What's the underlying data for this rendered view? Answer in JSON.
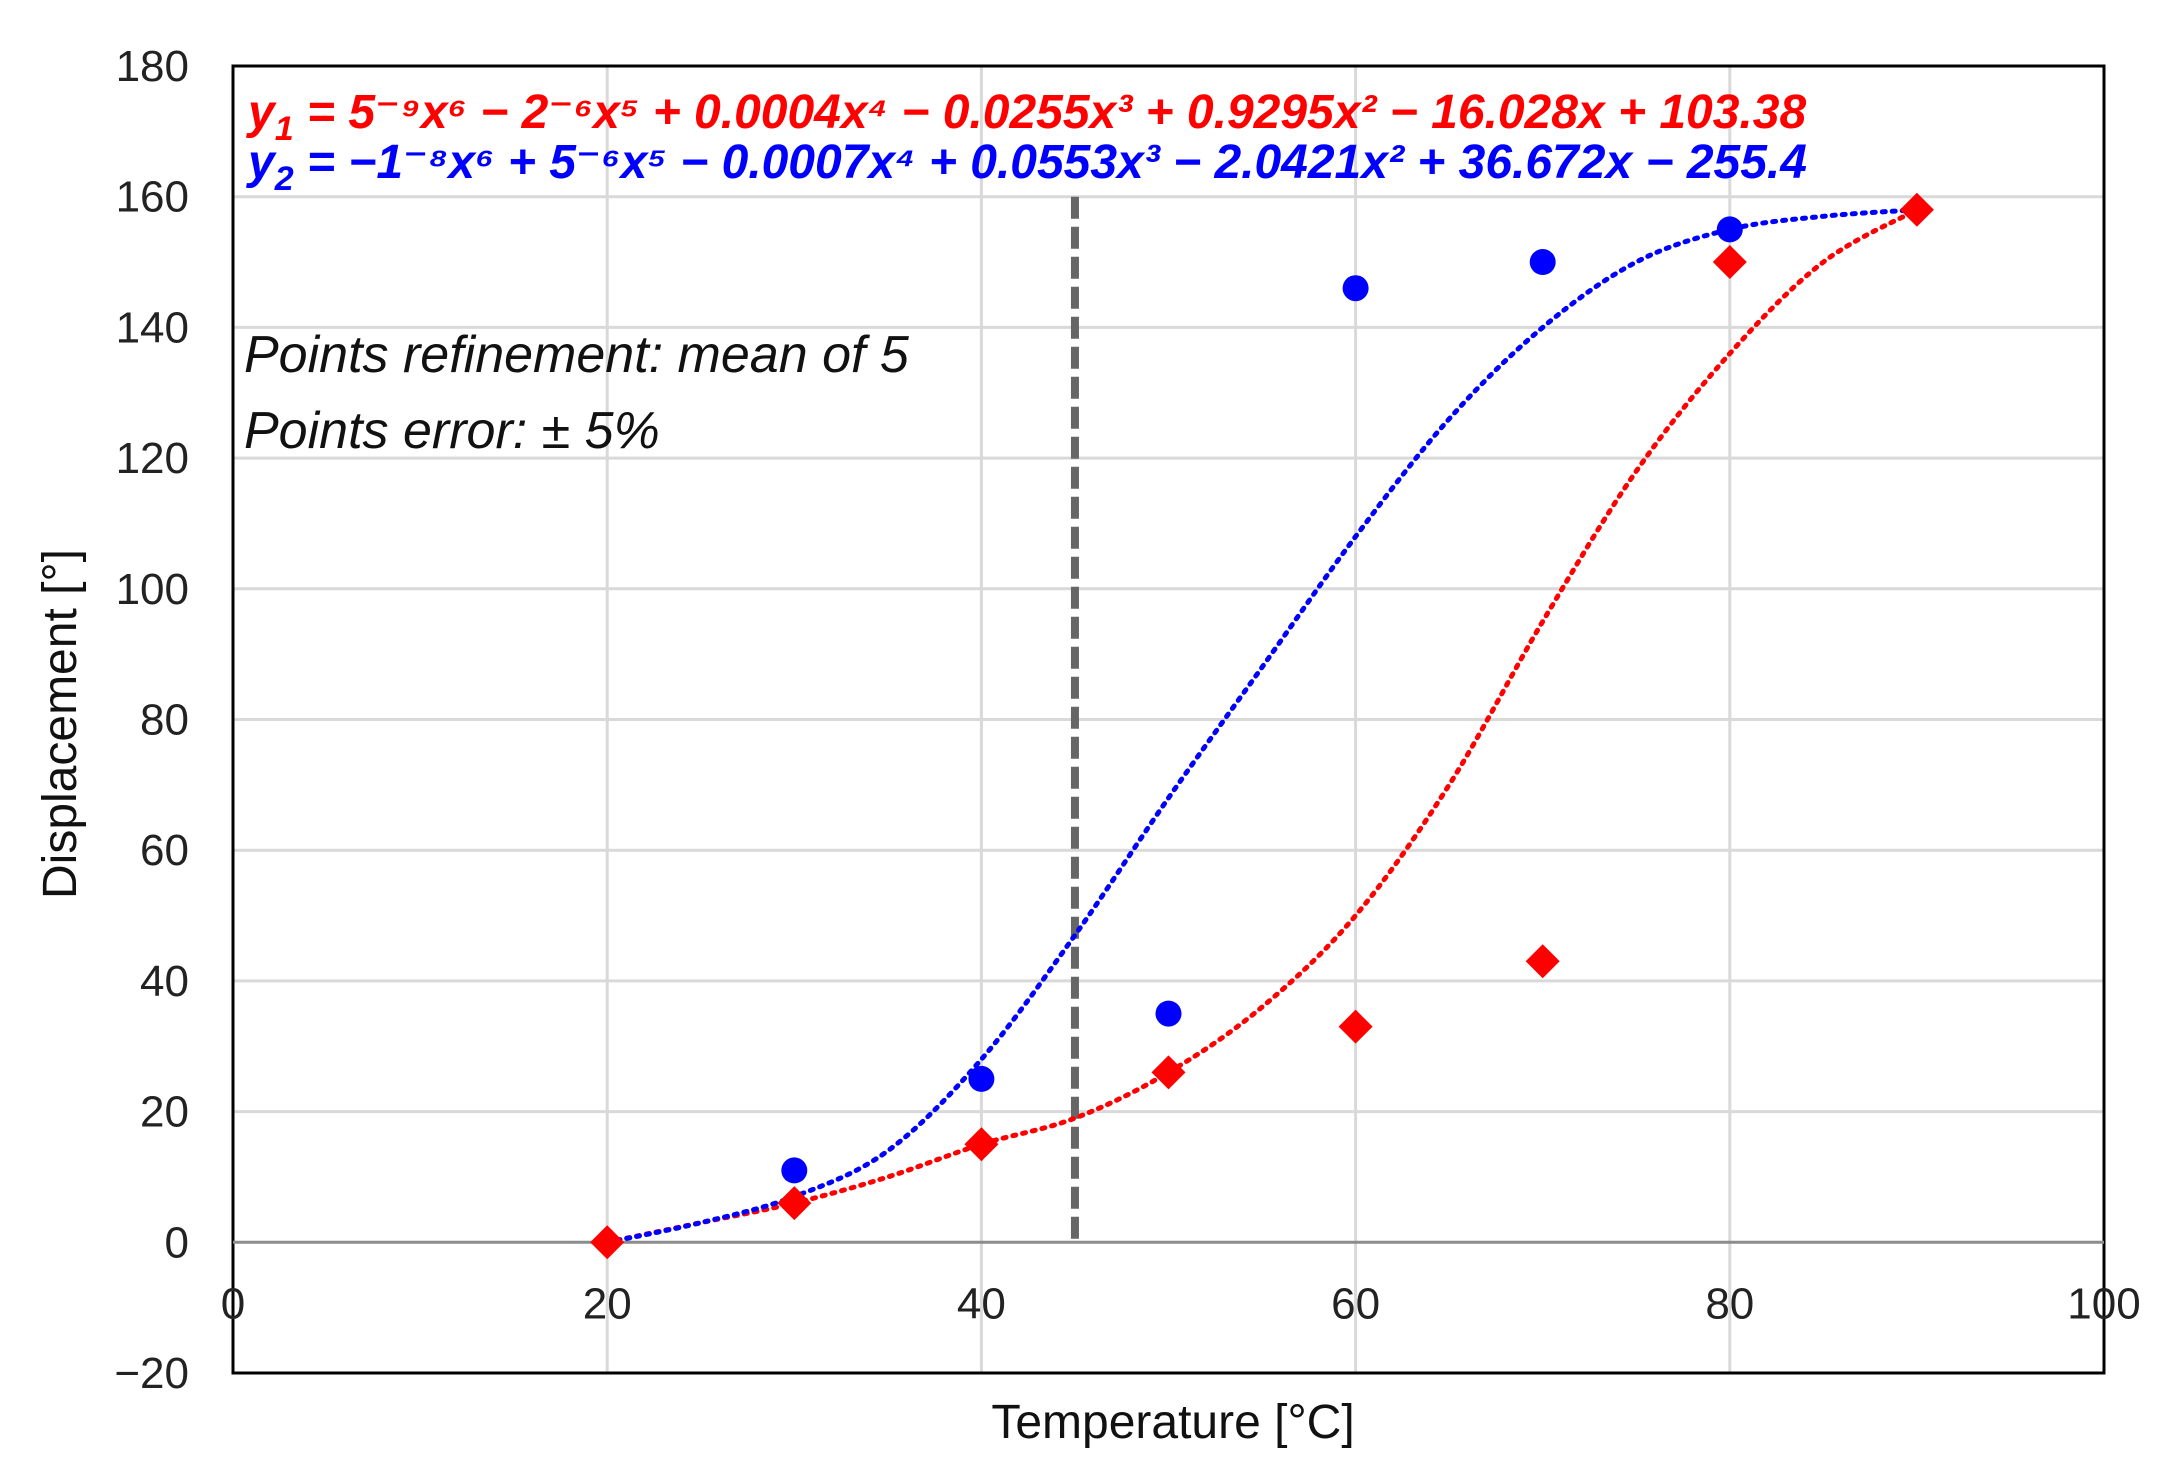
{
  "chart_data": {
    "type": "scatter",
    "title": "",
    "xlabel": "Temperature [°C]",
    "ylabel": "Displacement [°]",
    "xlim": [
      0,
      100
    ],
    "ylim": [
      -20,
      180
    ],
    "x_ticks": [
      0,
      20,
      40,
      60,
      80,
      100
    ],
    "y_ticks": [
      -20,
      0,
      20,
      40,
      60,
      80,
      100,
      120,
      140,
      160,
      180
    ],
    "x_tick_labels": [
      "0",
      "20",
      "40",
      "60",
      "80",
      "100"
    ],
    "y_tick_labels": [
      "−20",
      "0",
      "20",
      "40",
      "60",
      "80",
      "100",
      "120",
      "140",
      "160",
      "180"
    ],
    "grid": true,
    "series": [
      {
        "name": "y1",
        "marker": "diamond",
        "color": "#ff0000",
        "x": [
          20,
          30,
          40,
          50,
          60,
          70,
          80,
          90
        ],
        "y": [
          0,
          6,
          15,
          26,
          33,
          43,
          150,
          158
        ],
        "trendline": {
          "type": "polynomial",
          "order": 6,
          "style": "dotted",
          "fitted": [
            [
              20,
              0
            ],
            [
              25,
              3
            ],
            [
              30,
              6
            ],
            [
              35,
              10
            ],
            [
              40,
              15
            ],
            [
              45,
              19
            ],
            [
              50,
              26
            ],
            [
              55,
              36
            ],
            [
              60,
              50
            ],
            [
              65,
              70
            ],
            [
              70,
              95
            ],
            [
              75,
              118
            ],
            [
              80,
              136
            ],
            [
              85,
              150
            ],
            [
              90,
              158
            ]
          ]
        }
      },
      {
        "name": "y2",
        "marker": "circle",
        "color": "#0000ff",
        "x": [
          30,
          40,
          50,
          60,
          70,
          80
        ],
        "y": [
          11,
          25,
          35,
          146,
          150,
          155
        ],
        "trendline": {
          "type": "polynomial",
          "order": 6,
          "style": "dotted",
          "fitted": [
            [
              20,
              0
            ],
            [
              25,
              3
            ],
            [
              30,
              7
            ],
            [
              35,
              14
            ],
            [
              40,
              28
            ],
            [
              45,
              47
            ],
            [
              50,
              68
            ],
            [
              55,
              88
            ],
            [
              60,
              108
            ],
            [
              65,
              126
            ],
            [
              70,
              140
            ],
            [
              75,
              150
            ],
            [
              80,
              155
            ],
            [
              85,
              157
            ],
            [
              90,
              158
            ]
          ]
        }
      }
    ],
    "reference_line": {
      "x": 45,
      "style": "dashed",
      "color": "#666666"
    },
    "equations": {
      "y1": {
        "color": "#ff0000",
        "lhs": "y",
        "sub": "1",
        "text": " = 5⁻⁹x⁶ − 2⁻⁶x⁵ + 0.0004x⁴ − 0.0255x³ + 0.9295x² − 16.028x + 103.38"
      },
      "y2": {
        "color": "#0000ff",
        "lhs": "y",
        "sub": "2",
        "text": " = −1⁻⁸x⁶ + 5⁻⁶x⁵ − 0.0007x⁴ + 0.0553x³ − 2.0421x² + 36.672x − 255.4"
      }
    },
    "annotations": [
      "Points refinement: mean of 5",
      "Points error: ± 5%"
    ]
  }
}
